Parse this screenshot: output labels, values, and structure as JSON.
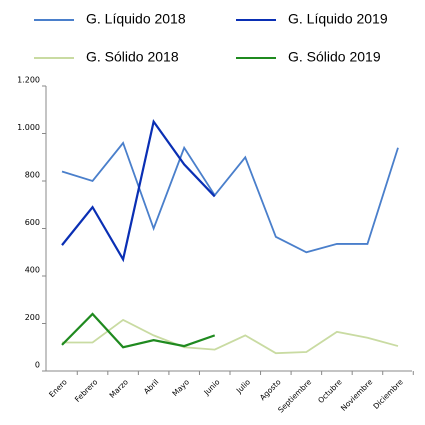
{
  "chart_data": {
    "type": "line",
    "categories": [
      "Enero",
      "Febrero",
      "Marzo",
      "Abril",
      "Mayo",
      "Junio",
      "Julio",
      "Agosto",
      "Septiembre",
      "Octubre",
      "Noviembre",
      "Diciembre"
    ],
    "series": [
      {
        "name": "G. Líquido 2018",
        "color": "#4a7fcb",
        "values": [
          840,
          800,
          960,
          600,
          940,
          740,
          900,
          565,
          500,
          535,
          535,
          940
        ]
      },
      {
        "name": "G. Líquido 2019",
        "color": "#0a2fb4",
        "values": [
          530,
          690,
          470,
          1050,
          870,
          735,
          null,
          null,
          null,
          null,
          null,
          null
        ]
      },
      {
        "name": "G. Sólido 2018",
        "color": "#c9dba2",
        "values": [
          120,
          120,
          215,
          150,
          100,
          90,
          150,
          75,
          80,
          165,
          140,
          105
        ]
      },
      {
        "name": "G. Sólido 2019",
        "color": "#1f8a1f",
        "values": [
          110,
          240,
          100,
          130,
          105,
          150,
          null,
          null,
          null,
          null,
          null,
          null
        ]
      }
    ],
    "ylim": [
      0,
      1200
    ],
    "yticks": [
      0,
      200,
      400,
      600,
      800,
      {
        "value": 1000,
        "label": "1.000"
      },
      {
        "value": 1200,
        "label": "1.200"
      }
    ],
    "grid": false
  }
}
